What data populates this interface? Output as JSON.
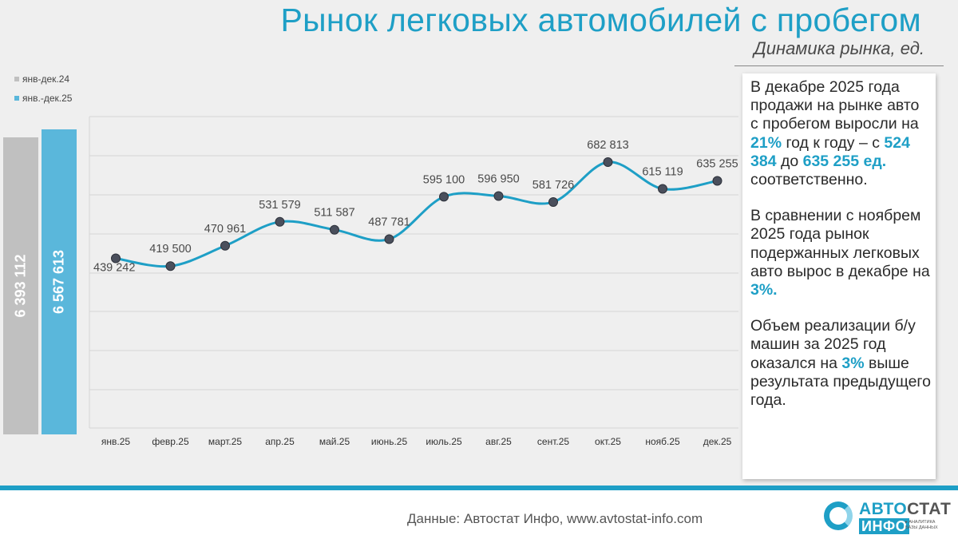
{
  "header": {
    "title": "Рынок легковых автомобилей с пробегом",
    "subtitle": "Динамика рынка, ед."
  },
  "legend": [
    {
      "label": "янв-дек.24",
      "color": "#c0c0c0"
    },
    {
      "label": "янв.-дек.25",
      "color": "#5ab7db"
    }
  ],
  "totals": [
    {
      "label": "6 393 112",
      "value": 6393112,
      "color": "#c0c0c0"
    },
    {
      "label": "6 567 613",
      "value": 6567613,
      "color": "#5ab7db"
    }
  ],
  "chart_data": {
    "type": "line",
    "categories": [
      "янв.25",
      "февр.25",
      "март.25",
      "апр.25",
      "май.25",
      "июнь.25",
      "июль.25",
      "авг.25",
      "сент.25",
      "окт.25",
      "нояб.25",
      "дек.25"
    ],
    "series": [
      {
        "values": [
          439242,
          419500,
          470961,
          531579,
          511587,
          487781,
          595100,
          596950,
          581726,
          682813,
          615119,
          635255
        ],
        "labels": [
          "439 242",
          "419 500",
          "470 961",
          "531 579",
          "511 587",
          "487 781",
          "595 100",
          "596 950",
          "581 726",
          "682 813",
          "615 119",
          "635 255"
        ],
        "color": "#1e9fc6"
      }
    ],
    "grid": true,
    "line_color": "#1e9fc6",
    "marker_color": "#4a4f5c"
  },
  "note": {
    "p1_a": "В декабре 2025 года продажи на рынке авто с пробегом выросли на ",
    "p1_h1": "21%",
    "p1_b": " год к году – с ",
    "p1_h2": "524 384",
    "p1_c": " до ",
    "p1_h3": "635 255 ед.",
    "p1_d": " соответственно.",
    "p2_a": "В сравнении с ноябрем 2025 года рынок подержанных легковых авто вырос в декабре на ",
    "p2_h1": "3%.",
    "p3_a": "Объем реализации б/у машин за 2025 год оказался на ",
    "p3_h1": "3%",
    "p3_b": " выше результата предыдущего года."
  },
  "footer": {
    "source": "Данные: Автостат Инфо, www.avtostat-info.com"
  },
  "logo": {
    "part1": "АВТО",
    "part2": "СТАТ",
    "part3": "ИНФО",
    "tagline1": "▸ АНАЛИТИКА",
    "tagline2": "БАЗЫ ДАННЫХ"
  },
  "colors": {
    "accent": "#1e9fc6",
    "bar_2024": "#c0c0c0",
    "bar_2025": "#5ab7db",
    "background": "#efefef"
  }
}
